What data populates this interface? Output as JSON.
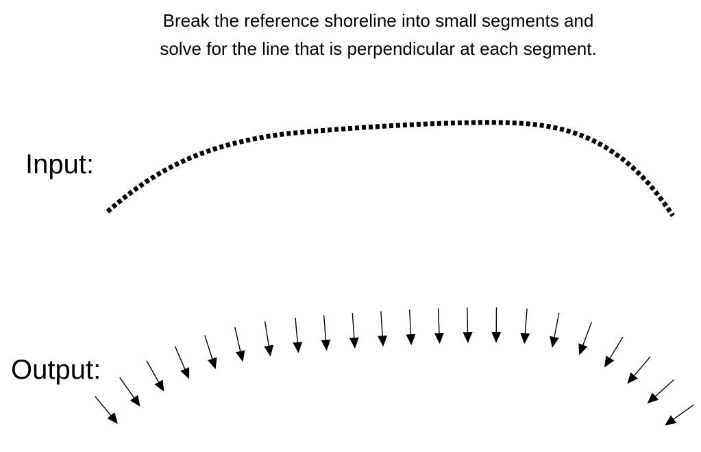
{
  "caption": "Break the reference shoreline into small segments and solve for the line that is perpendicular at each segment.",
  "labels": {
    "input": "Input:",
    "output": "Output:"
  },
  "colors": {
    "ink": "#000000",
    "background": "#ffffff"
  }
}
